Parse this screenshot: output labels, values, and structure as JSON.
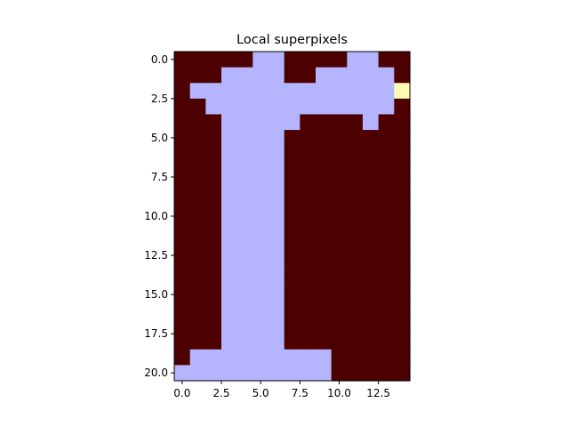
{
  "chart_data": {
    "type": "heatmap",
    "title": "Local superpixels",
    "xlabel": "",
    "ylabel": "",
    "grid": false,
    "n_rows": 21,
    "n_cols": 15,
    "xlim": [
      -0.5,
      14.5
    ],
    "ylim": [
      20.5,
      -0.5
    ],
    "xticks": [
      0.0,
      2.5,
      5.0,
      7.5,
      10.0,
      12.5
    ],
    "xtick_labels": [
      "0.0",
      "2.5",
      "5.0",
      "7.5",
      "10.0",
      "12.5"
    ],
    "yticks": [
      0.0,
      2.5,
      5.0,
      7.5,
      10.0,
      12.5,
      15.0,
      17.5,
      20.0
    ],
    "ytick_labels": [
      "0.0",
      "2.5",
      "5.0",
      "7.5",
      "10.0",
      "12.5",
      "15.0",
      "17.5",
      "20.0"
    ],
    "palette": {
      "0": "#4d0000",
      "1": "#b4b4ff",
      "2": "#fffcb4"
    },
    "matrix": [
      [
        0,
        0,
        0,
        0,
        0,
        1,
        1,
        0,
        0,
        0,
        0,
        1,
        1,
        0,
        0
      ],
      [
        0,
        0,
        0,
        1,
        1,
        1,
        1,
        0,
        0,
        1,
        1,
        1,
        1,
        1,
        0
      ],
      [
        0,
        1,
        1,
        1,
        1,
        1,
        1,
        1,
        1,
        1,
        1,
        1,
        1,
        1,
        2
      ],
      [
        0,
        0,
        1,
        1,
        1,
        1,
        1,
        1,
        1,
        1,
        1,
        1,
        1,
        1,
        0
      ],
      [
        0,
        0,
        0,
        1,
        1,
        1,
        1,
        1,
        0,
        0,
        0,
        0,
        1,
        0,
        0
      ],
      [
        0,
        0,
        0,
        1,
        1,
        1,
        1,
        0,
        0,
        0,
        0,
        0,
        0,
        0,
        0
      ],
      [
        0,
        0,
        0,
        1,
        1,
        1,
        1,
        0,
        0,
        0,
        0,
        0,
        0,
        0,
        0
      ],
      [
        0,
        0,
        0,
        1,
        1,
        1,
        1,
        0,
        0,
        0,
        0,
        0,
        0,
        0,
        0
      ],
      [
        0,
        0,
        0,
        1,
        1,
        1,
        1,
        0,
        0,
        0,
        0,
        0,
        0,
        0,
        0
      ],
      [
        0,
        0,
        0,
        1,
        1,
        1,
        1,
        0,
        0,
        0,
        0,
        0,
        0,
        0,
        0
      ],
      [
        0,
        0,
        0,
        1,
        1,
        1,
        1,
        0,
        0,
        0,
        0,
        0,
        0,
        0,
        0
      ],
      [
        0,
        0,
        0,
        1,
        1,
        1,
        1,
        0,
        0,
        0,
        0,
        0,
        0,
        0,
        0
      ],
      [
        0,
        0,
        0,
        1,
        1,
        1,
        1,
        0,
        0,
        0,
        0,
        0,
        0,
        0,
        0
      ],
      [
        0,
        0,
        0,
        1,
        1,
        1,
        1,
        0,
        0,
        0,
        0,
        0,
        0,
        0,
        0
      ],
      [
        0,
        0,
        0,
        1,
        1,
        1,
        1,
        0,
        0,
        0,
        0,
        0,
        0,
        0,
        0
      ],
      [
        0,
        0,
        0,
        1,
        1,
        1,
        1,
        0,
        0,
        0,
        0,
        0,
        0,
        0,
        0
      ],
      [
        0,
        0,
        0,
        1,
        1,
        1,
        1,
        0,
        0,
        0,
        0,
        0,
        0,
        0,
        0
      ],
      [
        0,
        0,
        0,
        1,
        1,
        1,
        1,
        0,
        0,
        0,
        0,
        0,
        0,
        0,
        0
      ],
      [
        0,
        0,
        0,
        1,
        1,
        1,
        1,
        0,
        0,
        0,
        0,
        0,
        0,
        0,
        0
      ],
      [
        0,
        1,
        1,
        1,
        1,
        1,
        1,
        1,
        1,
        1,
        0,
        0,
        0,
        0,
        0
      ],
      [
        1,
        1,
        1,
        1,
        1,
        1,
        1,
        1,
        1,
        1,
        0,
        0,
        0,
        0,
        0
      ]
    ]
  }
}
